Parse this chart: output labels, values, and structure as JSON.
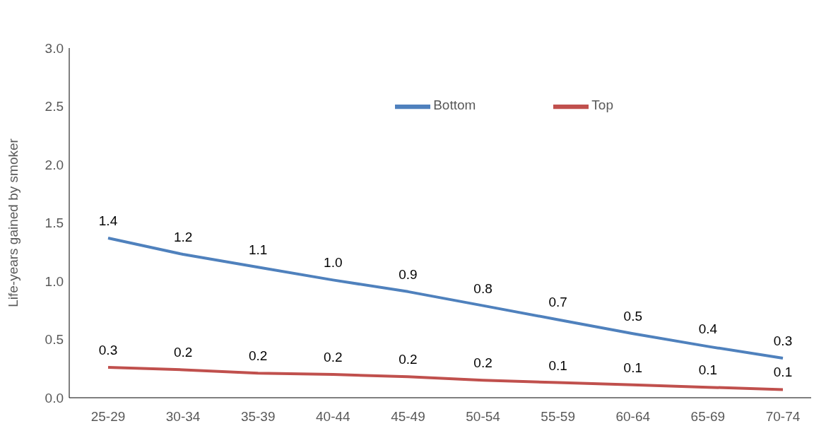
{
  "chart_data": {
    "type": "line",
    "ylabel": "Life-years gained by smoker",
    "categories": [
      "25-29",
      "30-34",
      "35-39",
      "40-44",
      "45-49",
      "50-54",
      "55-59",
      "60-64",
      "65-69",
      "70-74"
    ],
    "series": [
      {
        "name": "Bottom",
        "color": "#4f81bd",
        "values": [
          1.37,
          1.23,
          1.12,
          1.01,
          0.91,
          0.79,
          0.67,
          0.55,
          0.44,
          0.34
        ],
        "value_labels": [
          "1.4",
          "1.2",
          "1.1",
          "1.0",
          "0.9",
          "0.8",
          "0.7",
          "0.5",
          "0.4",
          "0.3"
        ]
      },
      {
        "name": "Top",
        "color": "#c0504d",
        "values": [
          0.26,
          0.24,
          0.21,
          0.2,
          0.18,
          0.15,
          0.13,
          0.11,
          0.09,
          0.07
        ],
        "value_labels": [
          "0.3",
          "0.2",
          "0.2",
          "0.2",
          "0.2",
          "0.2",
          "0.1",
          "0.1",
          "0.1",
          "0.1"
        ]
      }
    ],
    "ylim": [
      0,
      3
    ],
    "yticks": [
      {
        "value": 0,
        "label": "0.0"
      },
      {
        "value": 0.5,
        "label": "0.5"
      },
      {
        "value": 1,
        "label": "1.0"
      },
      {
        "value": 1.5,
        "label": "1.5"
      },
      {
        "value": 2,
        "label": "2.0"
      },
      {
        "value": 2.5,
        "label": "2.5"
      },
      {
        "value": 3,
        "label": "3.0"
      }
    ],
    "grid": false,
    "legend": "top right",
    "marker": "none",
    "line_style": "solid"
  }
}
